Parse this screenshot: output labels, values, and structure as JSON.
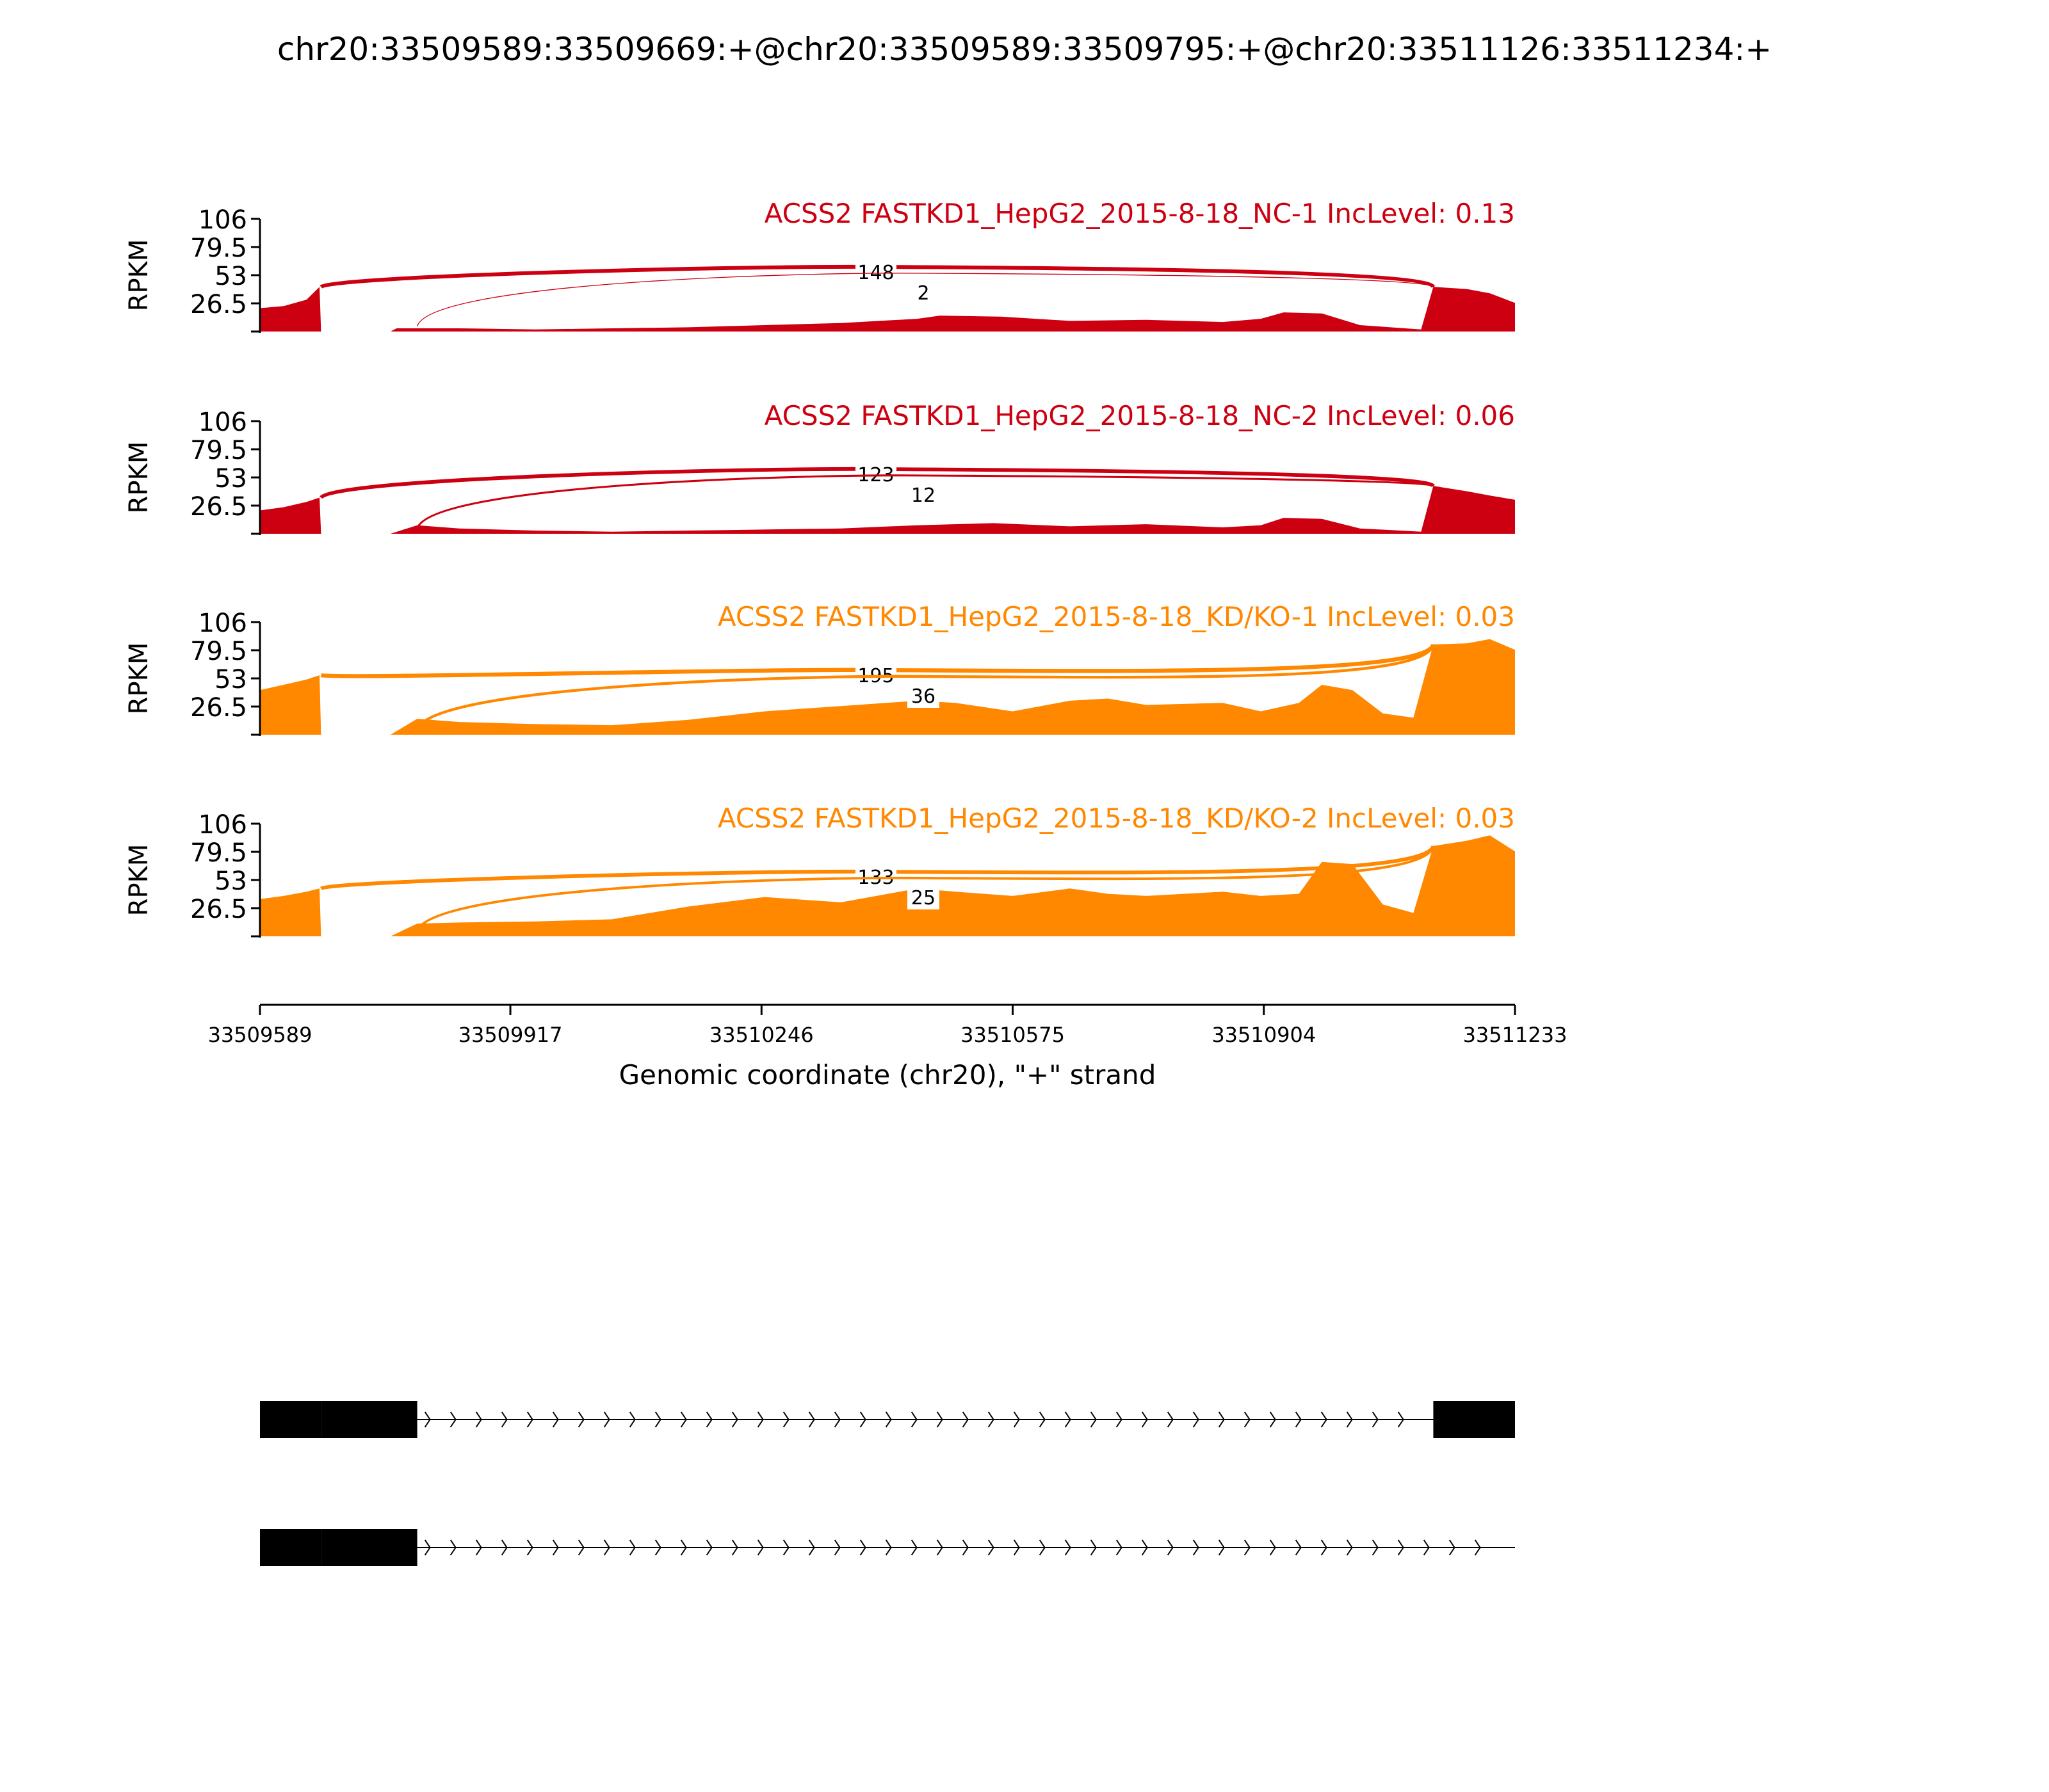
{
  "figure": {
    "title": "chr20:33509589:33509669:+@chr20:33509589:33509795:+@chr20:33511126:33511234:+"
  },
  "chart_data": {
    "type": "area",
    "title": "chr20:33509589:33509669:+@chr20:33509589:33509795:+@chr20:33511126:33511234:+",
    "xlabel": "Genomic coordinate (chr20), \"+\" strand",
    "ylabel": "RPKM",
    "xlim": [
      33509589,
      33511233
    ],
    "ylim": [
      0,
      106
    ],
    "x_ticks": [
      "33509589",
      "33509917",
      "33510246",
      "33510575",
      "33510904",
      "33511233"
    ],
    "y_ticks": [
      "26.5",
      "53",
      "79.5",
      "106"
    ],
    "grid": false,
    "colors": {
      "NC": "#cc0011",
      "KD": "#ff8800"
    },
    "exons": {
      "upstream_short": [
        33509589,
        33509669
      ],
      "upstream_long": [
        33509589,
        33509795
      ],
      "downstream": [
        33511126,
        33511234
      ]
    },
    "samples": [
      {
        "label": "ACSS2 FASTKD1_HepG2_2015-8-18_NC-1 IncLevel: 0.13",
        "color": "#cc0011",
        "junctions": [
          {
            "label": "148",
            "from": 33509669,
            "to": 33511126,
            "count": 148
          },
          {
            "label": "2",
            "from": 33509795,
            "to": 33511126,
            "count": 2
          }
        ],
        "coverage": [
          [
            33509589,
            22
          ],
          [
            33509620,
            24
          ],
          [
            33509650,
            30
          ],
          [
            33509667,
            42
          ],
          [
            33509669,
            0
          ],
          [
            33509760,
            0
          ],
          [
            33509768,
            3
          ],
          [
            33509850,
            3
          ],
          [
            33509950,
            2
          ],
          [
            33510050,
            3
          ],
          [
            33510150,
            4
          ],
          [
            33510250,
            6
          ],
          [
            33510350,
            8
          ],
          [
            33510450,
            12
          ],
          [
            33510480,
            15
          ],
          [
            33510560,
            14
          ],
          [
            33510650,
            10
          ],
          [
            33510750,
            11
          ],
          [
            33510850,
            9
          ],
          [
            33510900,
            12
          ],
          [
            33510930,
            18
          ],
          [
            33510980,
            17
          ],
          [
            33511030,
            6
          ],
          [
            33511110,
            2
          ],
          [
            33511126,
            42
          ],
          [
            33511170,
            40
          ],
          [
            33511200,
            36
          ],
          [
            33511233,
            27
          ]
        ]
      },
      {
        "label": "ACSS2 FASTKD1_HepG2_2015-8-18_NC-2 IncLevel: 0.06",
        "color": "#cc0011",
        "junctions": [
          {
            "label": "123",
            "from": 33509669,
            "to": 33511126,
            "count": 123
          },
          {
            "label": "12",
            "from": 33509795,
            "to": 33511126,
            "count": 12
          }
        ],
        "coverage": [
          [
            33509589,
            22
          ],
          [
            33509620,
            25
          ],
          [
            33509650,
            30
          ],
          [
            33509667,
            34
          ],
          [
            33509669,
            0
          ],
          [
            33509760,
            0
          ],
          [
            33509795,
            8
          ],
          [
            33509850,
            5
          ],
          [
            33509950,
            3
          ],
          [
            33510050,
            2
          ],
          [
            33510150,
            3
          ],
          [
            33510250,
            4
          ],
          [
            33510350,
            5
          ],
          [
            33510450,
            8
          ],
          [
            33510550,
            10
          ],
          [
            33510650,
            7
          ],
          [
            33510750,
            9
          ],
          [
            33510850,
            6
          ],
          [
            33510900,
            8
          ],
          [
            33510930,
            15
          ],
          [
            33510980,
            14
          ],
          [
            33511030,
            5
          ],
          [
            33511110,
            2
          ],
          [
            33511126,
            45
          ],
          [
            33511170,
            40
          ],
          [
            33511200,
            36
          ],
          [
            33511233,
            32
          ]
        ]
      },
      {
        "label": "ACSS2 FASTKD1_HepG2_2015-8-18_KD/KO-1 IncLevel: 0.03",
        "color": "#ff8800",
        "junctions": [
          {
            "label": "195",
            "from": 33509669,
            "to": 33511126,
            "count": 195
          },
          {
            "label": "36",
            "from": 33509795,
            "to": 33511126,
            "count": 36
          }
        ],
        "coverage": [
          [
            33509589,
            42
          ],
          [
            33509620,
            47
          ],
          [
            33509650,
            52
          ],
          [
            33509667,
            56
          ],
          [
            33509669,
            0
          ],
          [
            33509760,
            0
          ],
          [
            33509795,
            15
          ],
          [
            33509850,
            12
          ],
          [
            33509950,
            10
          ],
          [
            33510050,
            9
          ],
          [
            33510150,
            14
          ],
          [
            33510250,
            22
          ],
          [
            33510350,
            27
          ],
          [
            33510450,
            32
          ],
          [
            33510500,
            30
          ],
          [
            33510575,
            22
          ],
          [
            33510650,
            32
          ],
          [
            33510700,
            34
          ],
          [
            33510750,
            28
          ],
          [
            33510850,
            30
          ],
          [
            33510900,
            22
          ],
          [
            33510950,
            30
          ],
          [
            33510980,
            47
          ],
          [
            33511020,
            42
          ],
          [
            33511060,
            20
          ],
          [
            33511100,
            16
          ],
          [
            33511126,
            85
          ],
          [
            33511170,
            86
          ],
          [
            33511200,
            90
          ],
          [
            33511233,
            80
          ]
        ]
      },
      {
        "label": "ACSS2 FASTKD1_HepG2_2015-8-18_KD/KO-2 IncLevel: 0.03",
        "color": "#ff8800",
        "junctions": [
          {
            "label": "133",
            "from": 33509669,
            "to": 33511126,
            "count": 133
          },
          {
            "label": "25",
            "from": 33509795,
            "to": 33511126,
            "count": 25
          }
        ],
        "coverage": [
          [
            33509589,
            35
          ],
          [
            33509620,
            38
          ],
          [
            33509650,
            42
          ],
          [
            33509667,
            45
          ],
          [
            33509669,
            0
          ],
          [
            33509760,
            0
          ],
          [
            33509795,
            12
          ],
          [
            33509850,
            13
          ],
          [
            33509950,
            14
          ],
          [
            33510050,
            16
          ],
          [
            33510150,
            28
          ],
          [
            33510250,
            37
          ],
          [
            33510350,
            32
          ],
          [
            33510450,
            45
          ],
          [
            33510500,
            42
          ],
          [
            33510575,
            38
          ],
          [
            33510650,
            45
          ],
          [
            33510700,
            40
          ],
          [
            33510750,
            38
          ],
          [
            33510850,
            42
          ],
          [
            33510900,
            38
          ],
          [
            33510950,
            40
          ],
          [
            33510980,
            70
          ],
          [
            33511020,
            68
          ],
          [
            33511060,
            30
          ],
          [
            33511100,
            22
          ],
          [
            33511126,
            85
          ],
          [
            33511170,
            90
          ],
          [
            33511200,
            95
          ],
          [
            33511233,
            80
          ]
        ]
      }
    ],
    "isoforms": [
      {
        "exons": [
          {
            "start": 33509589,
            "end": 33509669
          },
          {
            "start": 33509669,
            "end": 33509795
          },
          {
            "start": 33511126,
            "end": 33511234
          }
        ],
        "intron": [
          33509795,
          33511126
        ]
      },
      {
        "exons": [
          {
            "start": 33509589,
            "end": 33509669
          },
          {
            "start": 33509669,
            "end": 33509795
          }
        ],
        "intron": [
          33509795,
          33511233
        ]
      }
    ]
  }
}
